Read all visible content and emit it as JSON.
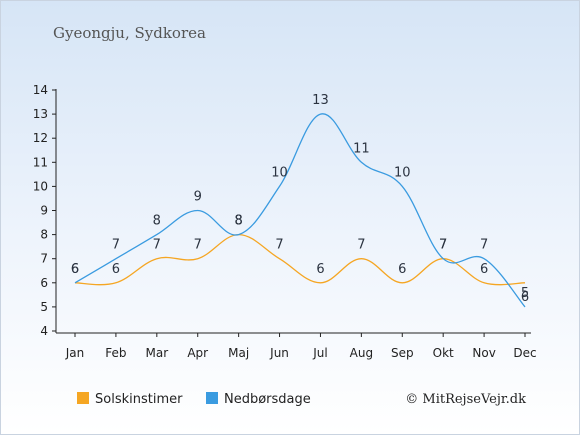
{
  "title": "Gyeongju, Sydkorea",
  "copyright": "© MitRejseVejr.dk",
  "chart_data": {
    "type": "line",
    "categories": [
      "Jan",
      "Feb",
      "Mar",
      "Apr",
      "Maj",
      "Jun",
      "Jul",
      "Aug",
      "Sep",
      "Okt",
      "Nov",
      "Dec"
    ],
    "series": [
      {
        "name": "Solskinstimer",
        "color": "#f5a623",
        "values": [
          6,
          6,
          7,
          7,
          8,
          7,
          6,
          7,
          6,
          7,
          6,
          6
        ]
      },
      {
        "name": "Nedbørsdage",
        "color": "#3a9be0",
        "values": [
          6,
          7,
          8,
          9,
          8,
          10,
          13,
          11,
          10,
          7,
          7,
          5
        ]
      }
    ],
    "yticks": [
      "4",
      "5",
      "6",
      "7",
      "8",
      "9",
      "10",
      "11",
      "12",
      "13",
      "14"
    ],
    "ylim": [
      4,
      14
    ],
    "legend_position": "bottom-left"
  }
}
